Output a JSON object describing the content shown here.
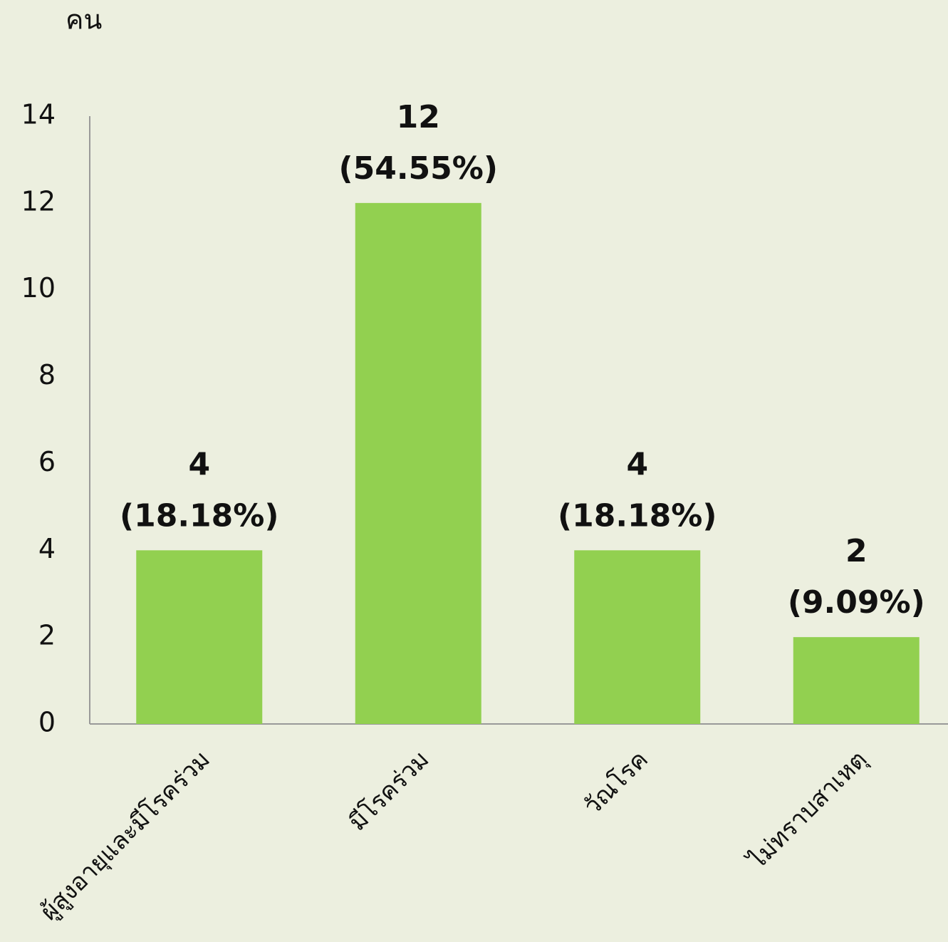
{
  "chart_data": {
    "type": "bar",
    "y_axis_label": "คน",
    "categories": [
      "ผู้สูงอายุและมีโรคร่วม",
      "มีโรคร่วม",
      "วัณโรค",
      "ไม่ทราบสาเหตุ"
    ],
    "values": [
      4,
      12,
      4,
      2
    ],
    "percent_labels": [
      "(18.18%)",
      "(54.55%)",
      "(18.18%)",
      "(9.09%)"
    ],
    "color": "#92d050",
    "ylim": [
      0,
      14
    ],
    "yticks": [
      0,
      2,
      4,
      6,
      8,
      10,
      12,
      14
    ],
    "grid": false
  }
}
